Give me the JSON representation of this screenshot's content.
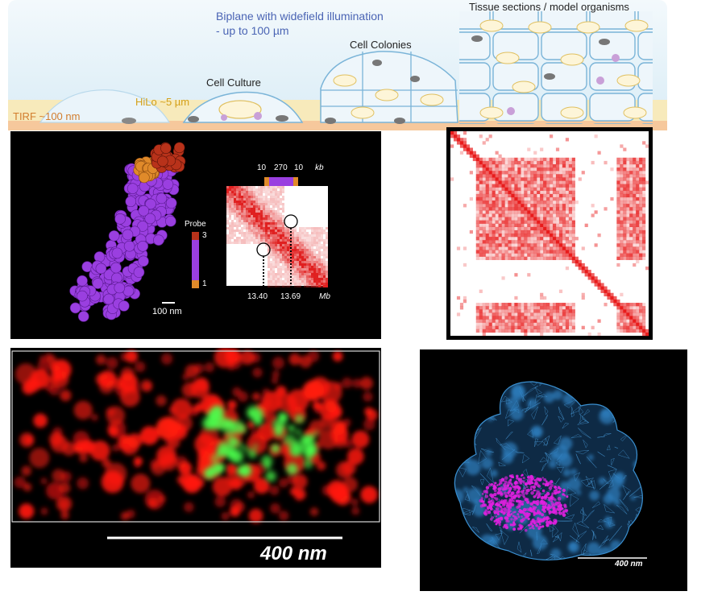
{
  "schematic": {
    "biplane_line1": "Biplane with widefield illumination",
    "biplane_line2": "- up to 100 µm",
    "tissue_label": "Tissue sections / model organisms",
    "colonies_label": "Cell Colonies",
    "culture_label": "Cell Culture",
    "hilo_label": "HiLo ~5 µm",
    "tirf_label": "TIRF ~100 nm",
    "colors": {
      "biplane_text": "#4a64b4",
      "hilo_text": "#d4a017",
      "tirf_text": "#d27d2d",
      "cell_outline": "#7ab4d8",
      "background_blue": "#e3f0f8",
      "band_yellow": "#fbe9b0",
      "band_orange": "#f6c89c"
    }
  },
  "structure_panel": {
    "probe_label": "Probe",
    "probe_max": "3",
    "probe_min": "1",
    "scalebar_label": "100 nm",
    "hic_top": [
      "10",
      "270",
      "10"
    ],
    "hic_top_unit": "kb",
    "hic_bottom_left": "13.40",
    "hic_bottom_right": "13.69",
    "hic_bottom_unit": "Mb",
    "colors": {
      "cluster_purple": "#9a3fe0",
      "cluster_orange": "#e08a2a",
      "cluster_red": "#b8321a",
      "heatmap_red": "#e02020"
    }
  },
  "matrix_panel": {
    "colors": {
      "frame": "#000000",
      "cell_red": "#e81c1c"
    }
  },
  "two_color_panel": {
    "scalebar_label": "400 nm",
    "colors": {
      "red": "#ff1a10",
      "green": "#4cff4c"
    }
  },
  "mesh_panel": {
    "scalebar_label": "400 nm",
    "colors": {
      "mesh": "#2f7fbf",
      "core": "#e020e0"
    }
  }
}
